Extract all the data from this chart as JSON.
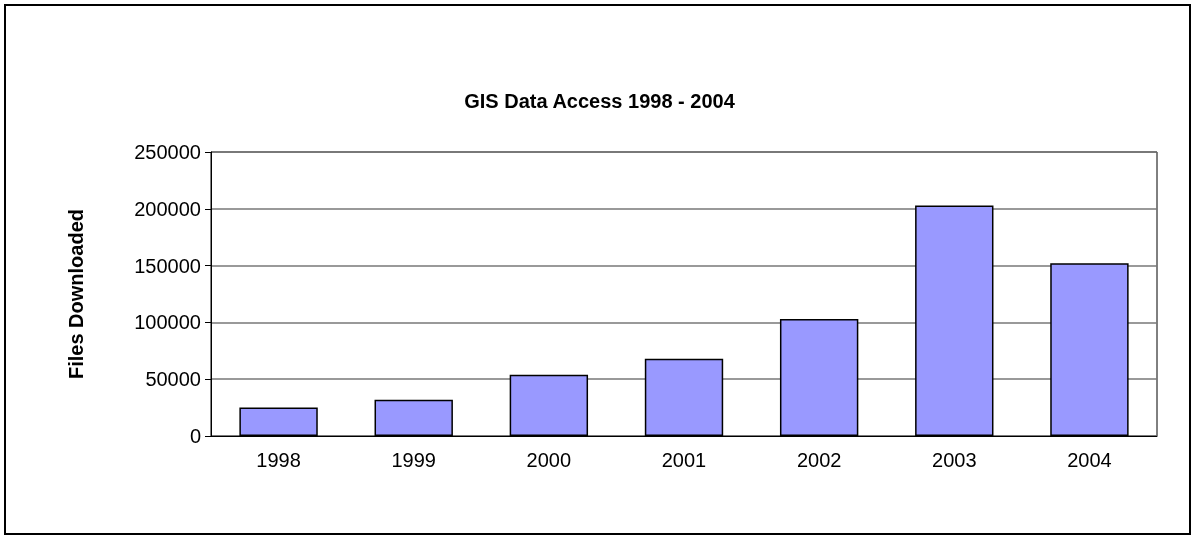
{
  "chart_data": {
    "type": "bar",
    "title": "GIS Data Access 1998 - 2004",
    "ylabel": "Files Downloaded",
    "categories": [
      "1998",
      "1999",
      "2000",
      "2001",
      "2002",
      "2003",
      "2004"
    ],
    "values": [
      25000,
      32000,
      54000,
      68000,
      103000,
      203000,
      152000
    ],
    "color": "#9999ff",
    "ylim": [
      0,
      250000
    ],
    "yticks": [
      0,
      50000,
      100000,
      150000,
      200000,
      250000
    ],
    "grid": "y"
  }
}
